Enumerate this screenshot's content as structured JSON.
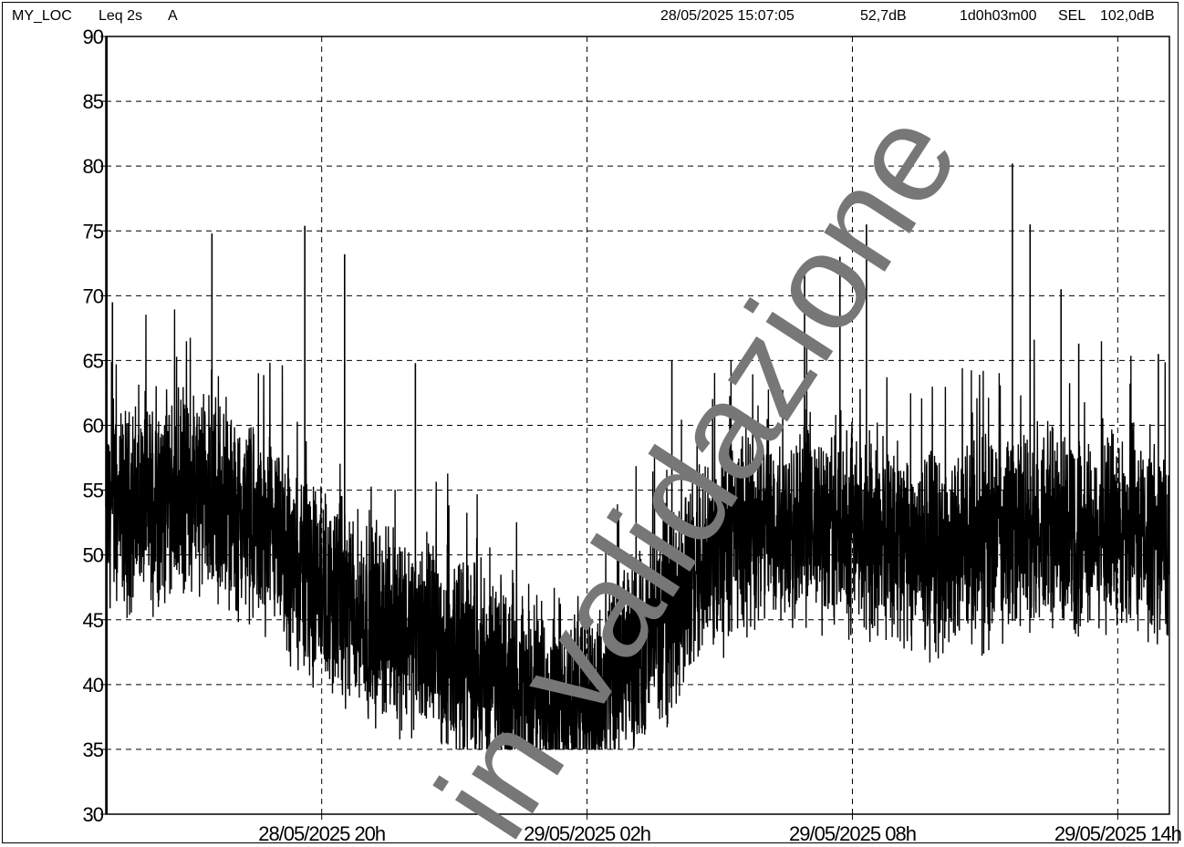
{
  "header": {
    "location": "MY_LOC",
    "measure": "Leq 2s",
    "weighting": "A",
    "cursor_time": "28/05/2025 15:07:05",
    "cursor_value": "52,7dB",
    "duration": "1d0h03m00",
    "sel_label": "SEL",
    "sel_value": "102,0dB"
  },
  "watermark": {
    "text": "in validazione",
    "color": "#777777"
  },
  "chart_data": {
    "type": "line",
    "title": "",
    "xlabel": "",
    "ylabel": "",
    "ylim": [
      30,
      90
    ],
    "yticks": [
      "30",
      "35",
      "40",
      "45",
      "50",
      "55",
      "60",
      "65",
      "70",
      "75",
      "80",
      "85",
      "90"
    ],
    "xlim": [
      "28/05/2025 15:07:05",
      "29/05/2025 15:10:05"
    ],
    "xticks": [
      "28/05/2025 20h",
      "29/05/2025 02h",
      "29/05/2025 08h",
      "29/05/2025 14h"
    ],
    "grid": true,
    "line_color": "#000000",
    "series": [
      {
        "values_hourly_mean": [
          53,
          54,
          55,
          53,
          50,
          47,
          45,
          44,
          42,
          40,
          39,
          38.5,
          42,
          47,
          51,
          52.5,
          52,
          52,
          51,
          50,
          51,
          52.5,
          52,
          52,
          51
        ],
        "envelope_min": 35,
        "envelope_max": 80,
        "peaks": [
          69.5,
          74.8,
          75.4,
          73.2,
          64.8,
          65,
          72,
          73,
          75.5,
          80.2,
          75.5,
          70.5,
          66.3,
          65.5
        ]
      }
    ]
  }
}
